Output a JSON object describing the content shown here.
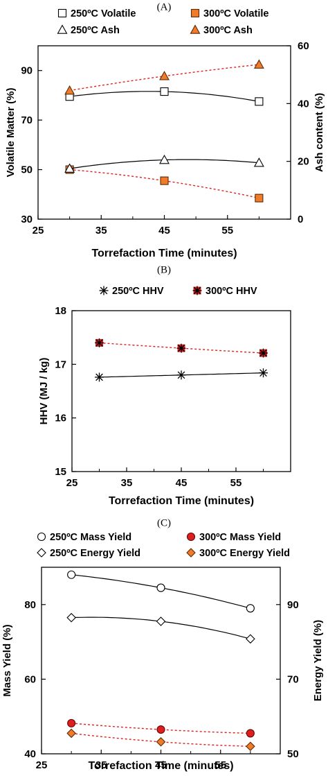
{
  "chart_data": [
    {
      "panel": "(A)",
      "type": "line",
      "xlabel": "Torrefaction Time (minutes)",
      "ylabel": "Volatile Matter (%)",
      "ylabel_right": "Ash content (%)",
      "xlim": [
        25,
        65
      ],
      "ylim": [
        30,
        100
      ],
      "ylim_right": [
        0,
        60
      ],
      "xticks": [
        "25",
        "35",
        "45",
        "55"
      ],
      "yticks": [
        "30",
        "50",
        "70",
        "90"
      ],
      "yticks_right": [
        "0",
        "20",
        "40",
        "60"
      ],
      "x": [
        30,
        45,
        60
      ],
      "series": [
        {
          "name": "250ºC Volatile",
          "axis": "left",
          "marker": "square-open",
          "color": "#000000",
          "line": "solid",
          "values": [
            79.5,
            81.5,
            77.5
          ]
        },
        {
          "name": "300ºC Volatile",
          "axis": "left",
          "marker": "square-filled",
          "color": "#f07b28",
          "line": "dotted-red",
          "values": [
            50,
            45.5,
            38.5
          ]
        },
        {
          "name": "250ºC Ash",
          "axis": "right",
          "marker": "triangle-open",
          "color": "#000000",
          "line": "solid",
          "values": [
            17.5,
            20.5,
            19.5
          ]
        },
        {
          "name": "300ºC Ash",
          "axis": "right",
          "marker": "triangle-filled",
          "color": "#f07b28",
          "line": "dotted-red",
          "values": [
            44.5,
            49.5,
            53.5
          ]
        }
      ],
      "legend": "top"
    },
    {
      "panel": "(B)",
      "type": "line",
      "xlabel": "Torrefaction Time (minutes)",
      "ylabel": "HHV (MJ / kg)",
      "xlim": [
        25,
        65
      ],
      "ylim": [
        15,
        18
      ],
      "xticks": [
        "25",
        "35",
        "45",
        "55"
      ],
      "yticks": [
        "15",
        "16",
        "17",
        "18"
      ],
      "x": [
        30,
        45,
        60
      ],
      "series": [
        {
          "name": "250ºC HHV",
          "axis": "left",
          "marker": "star-open",
          "color": "#000000",
          "line": "solid",
          "values": [
            16.76,
            16.8,
            16.84
          ]
        },
        {
          "name": "300ºC HHV",
          "axis": "left",
          "marker": "star-filled",
          "color": "#d92020",
          "line": "dotted-red",
          "values": [
            17.4,
            17.3,
            17.21
          ]
        }
      ],
      "legend": "top"
    },
    {
      "panel": "(C)",
      "type": "line",
      "xlabel": "Torrefaction Time (minutes)",
      "ylabel": "Mass Yield  (%)",
      "ylabel_right": "Energy Yield  (%)",
      "xlim": [
        25,
        65
      ],
      "ylim": [
        40,
        90
      ],
      "ylim_right": [
        50,
        100
      ],
      "xticks": [
        "25",
        "35",
        "45",
        "55"
      ],
      "yticks": [
        "40",
        "60",
        "80"
      ],
      "yticks_right": [
        "50",
        "70",
        "90"
      ],
      "x": [
        30,
        45,
        60
      ],
      "series": [
        {
          "name": "250ºC Mass Yield",
          "axis": "left",
          "marker": "circle-open",
          "color": "#000000",
          "line": "solid",
          "values": [
            88,
            84.5,
            79
          ]
        },
        {
          "name": "300ºC Mass Yield",
          "axis": "left",
          "marker": "circle-filled",
          "color": "#e01e1e",
          "line": "dotted-red",
          "values": [
            48.2,
            46.5,
            45.5
          ]
        },
        {
          "name": "250ºC Energy Yield",
          "axis": "right",
          "marker": "diamond-open",
          "color": "#000000",
          "line": "solid",
          "values": [
            86.5,
            85.5,
            80.8
          ]
        },
        {
          "name": "300ºC Energy Yield",
          "axis": "right",
          "marker": "diamond-filled",
          "color": "#f07b28",
          "line": "dotted-red",
          "values": [
            55.5,
            53.2,
            52
          ]
        }
      ],
      "legend": "top"
    }
  ]
}
